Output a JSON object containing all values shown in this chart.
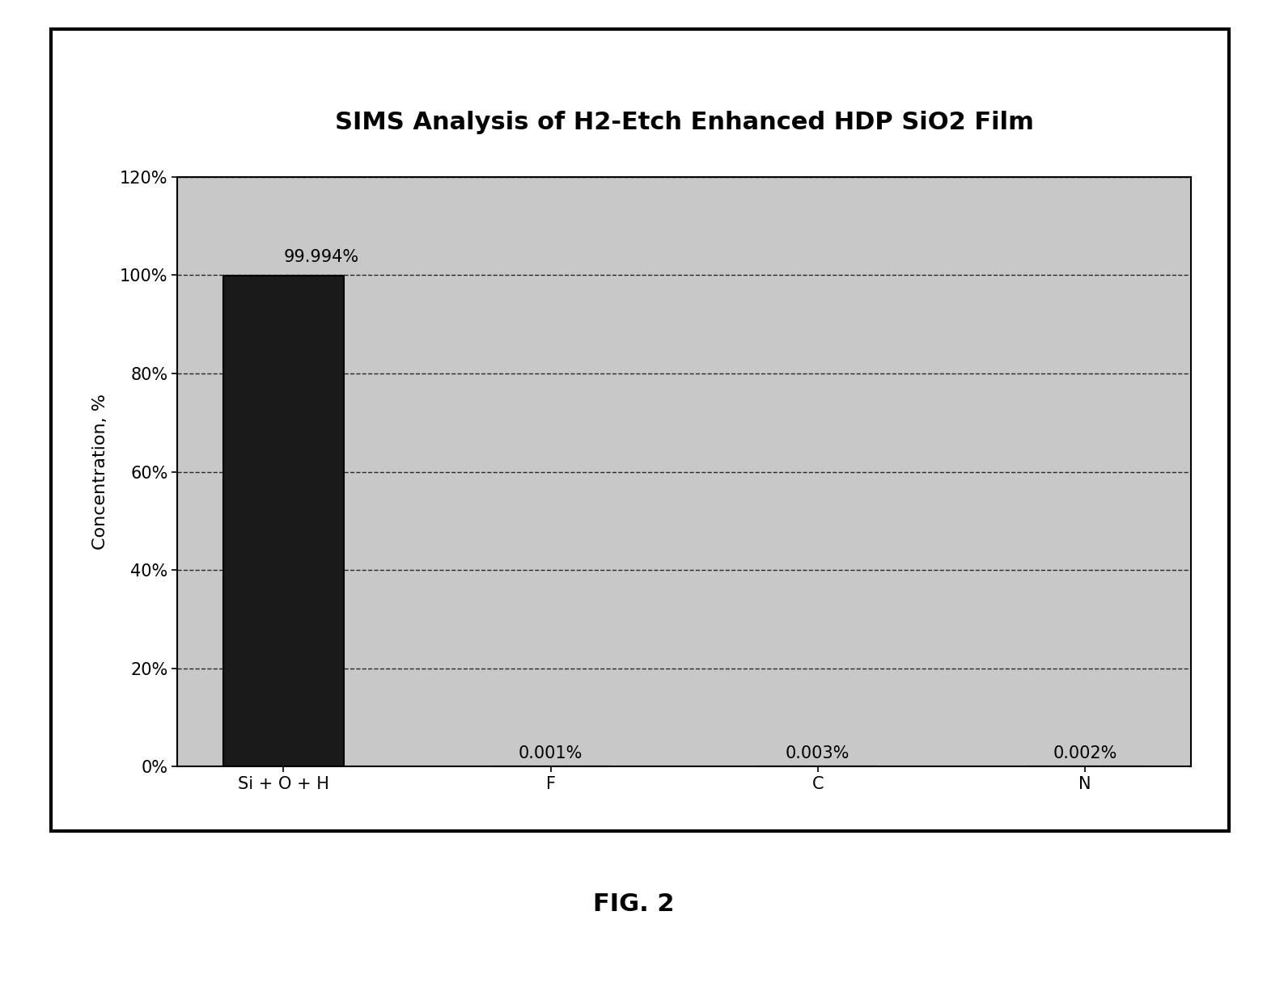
{
  "title": "SIMS Analysis of H2-Etch Enhanced HDP SiO2 Film",
  "categories": [
    "Si + O + H",
    "F",
    "C",
    "N"
  ],
  "values": [
    99.994,
    0.001,
    0.003,
    0.002
  ],
  "labels": [
    "99.994%",
    "0.001%",
    "0.003%",
    "0.002%"
  ],
  "ylabel": "Concentration, %",
  "ylim_max": 120,
  "ytick_vals": [
    0,
    20,
    40,
    60,
    80,
    100,
    120
  ],
  "ytick_labels": [
    "0%",
    "20%",
    "40%",
    "60%",
    "80%",
    "100%",
    "120%"
  ],
  "bar_color_main": "#1a1a1a",
  "bar_color_other": "#bebebe",
  "bar_edge_color": "#000000",
  "background_color": "#ffffff",
  "plot_bg_color": "#c8c8c8",
  "title_fontsize": 22,
  "label_fontsize": 15,
  "tick_fontsize": 15,
  "ylabel_fontsize": 16,
  "fig_caption": "FIG. 2",
  "fig_caption_fontsize": 22,
  "outer_border_color": "#000000",
  "outer_border_linewidth": 3
}
